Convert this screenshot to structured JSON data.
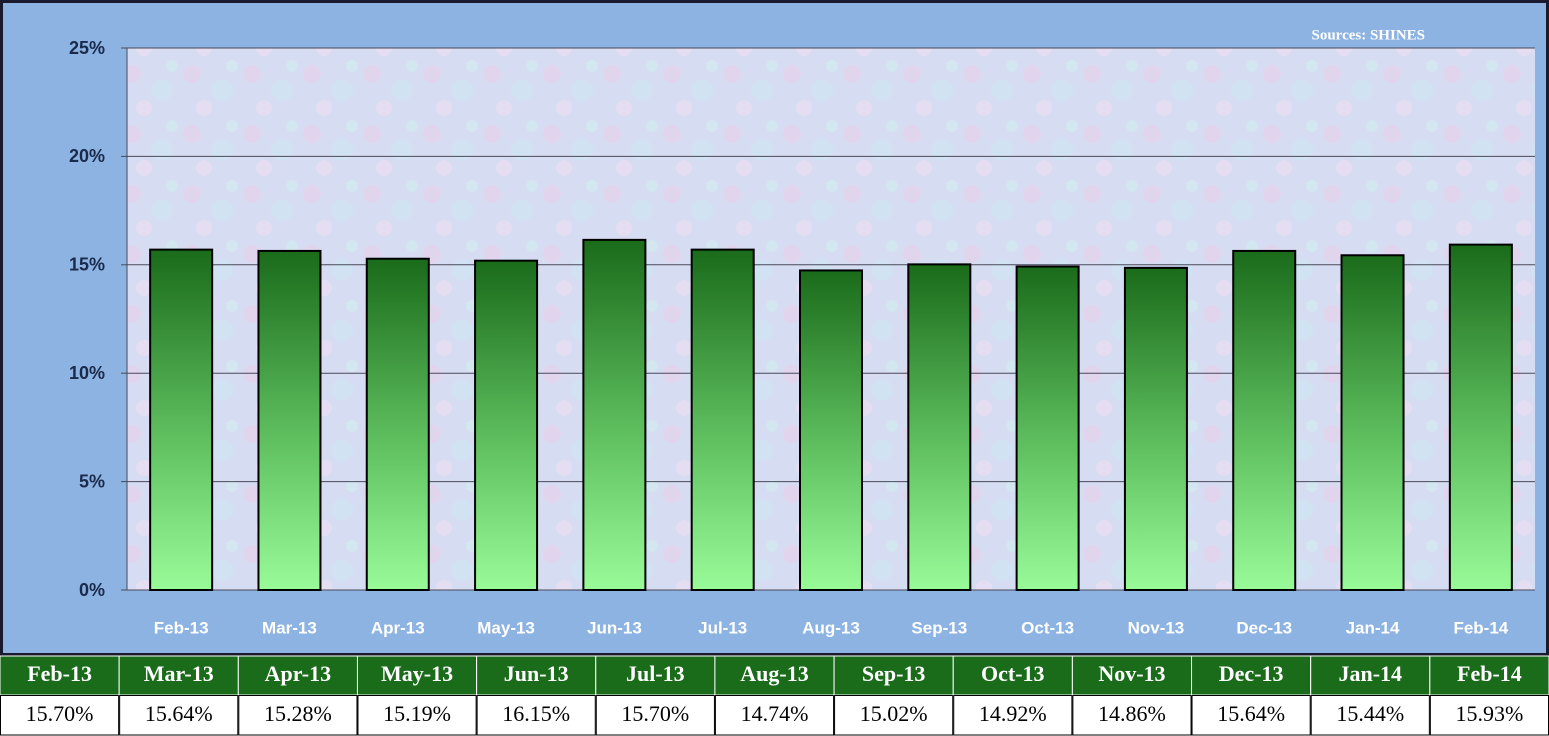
{
  "chart_data": {
    "type": "bar",
    "annotation": "Sources:  SHINES",
    "categories": [
      "Feb-13",
      "Mar-13",
      "Apr-13",
      "May-13",
      "Jun-13",
      "Jul-13",
      "Aug-13",
      "Sep-13",
      "Oct-13",
      "Nov-13",
      "Dec-13",
      "Jan-14",
      "Feb-14"
    ],
    "values": [
      15.7,
      15.64,
      15.28,
      15.19,
      16.15,
      15.7,
      14.74,
      15.02,
      14.92,
      14.86,
      15.64,
      15.44,
      15.93
    ],
    "value_labels": [
      "15.70%",
      "15.64%",
      "15.28%",
      "15.19%",
      "16.15%",
      "15.70%",
      "14.74%",
      "15.02%",
      "14.92%",
      "14.86%",
      "15.64%",
      "15.44%",
      "15.93%"
    ],
    "color": "#1a6b1a",
    "ylim": [
      0,
      25
    ],
    "yticks": [
      {
        "value": 0,
        "label": "0%"
      },
      {
        "value": 5,
        "label": "5%"
      },
      {
        "value": 10,
        "label": "10%"
      },
      {
        "value": 15,
        "label": "15%"
      },
      {
        "value": 20,
        "label": "20%"
      },
      {
        "value": 25,
        "label": "25%"
      }
    ],
    "grid": true
  }
}
